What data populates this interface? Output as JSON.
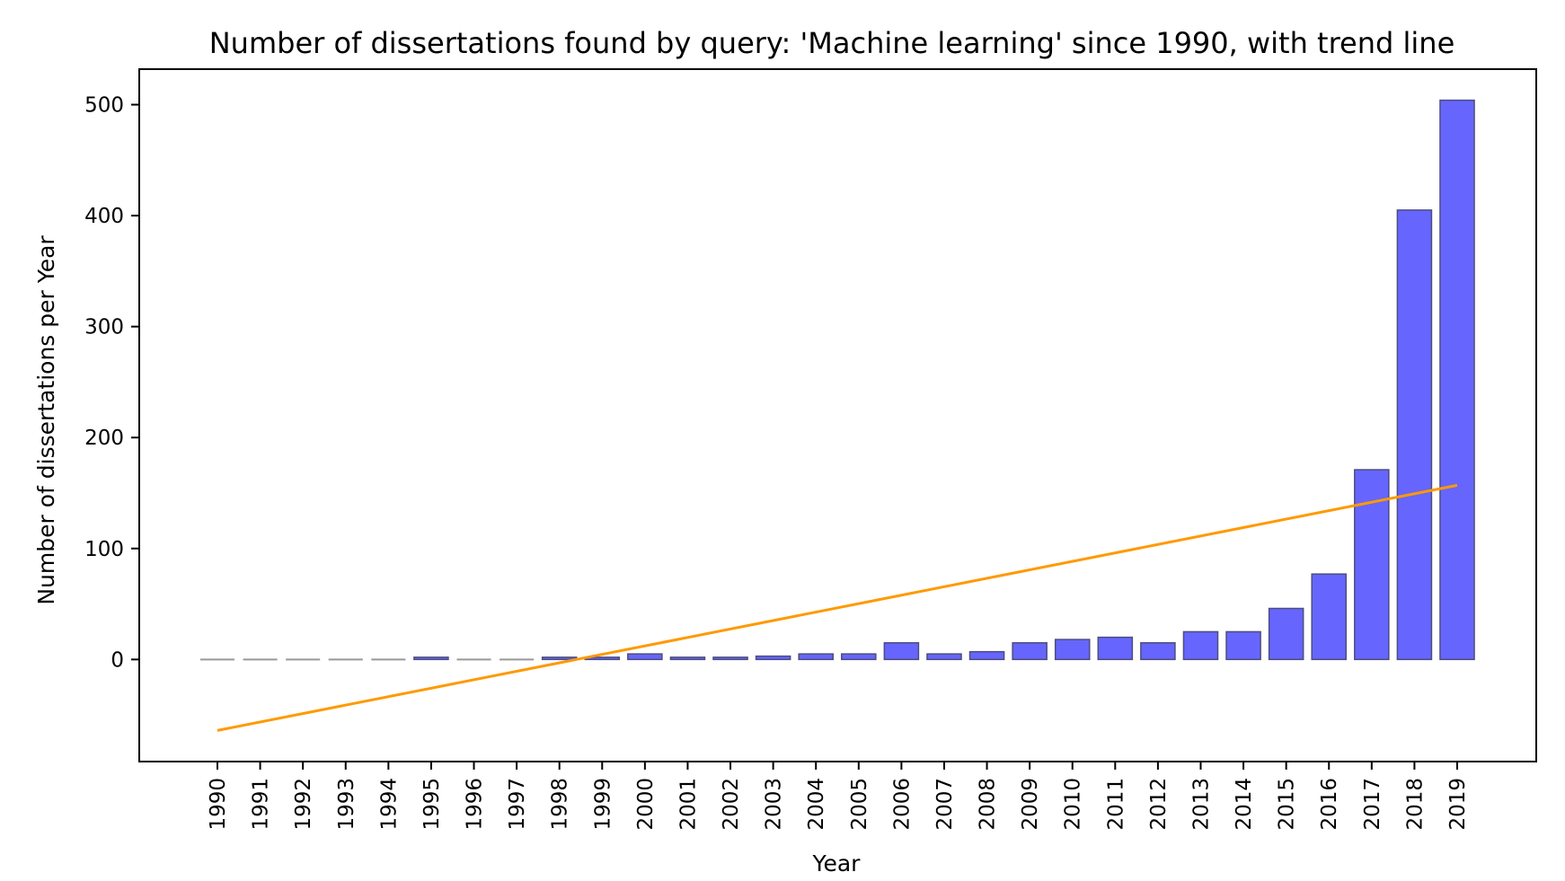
{
  "chart_data": {
    "type": "bar",
    "title": "Number of dissertations found by query: 'Machine learning' since 1990, with trend line",
    "xlabel": "Year",
    "ylabel": "Number of dissertations per Year",
    "categories": [
      "1990",
      "1991",
      "1992",
      "1993",
      "1994",
      "1995",
      "1996",
      "1997",
      "1998",
      "1999",
      "2000",
      "2001",
      "2002",
      "2003",
      "2004",
      "2005",
      "2006",
      "2007",
      "2008",
      "2009",
      "2010",
      "2011",
      "2012",
      "2013",
      "2014",
      "2015",
      "2016",
      "2017",
      "2018",
      "2019"
    ],
    "values": [
      0,
      0,
      0,
      0,
      0,
      2,
      0,
      0,
      2,
      2,
      5,
      2,
      2,
      3,
      5,
      5,
      15,
      5,
      7,
      15,
      18,
      20,
      15,
      25,
      25,
      46,
      77,
      171,
      405,
      504
    ],
    "trend_line": {
      "start": -64,
      "end": 157
    },
    "ylim": [
      -92,
      532
    ],
    "yticks": [
      0,
      100,
      200,
      300,
      400,
      500
    ],
    "grid": false,
    "colors": {
      "bar_fill": "#6666ff",
      "bar_edge": "#4d4d80",
      "trend": "#ff9900",
      "zero_bar": "#999999"
    }
  }
}
